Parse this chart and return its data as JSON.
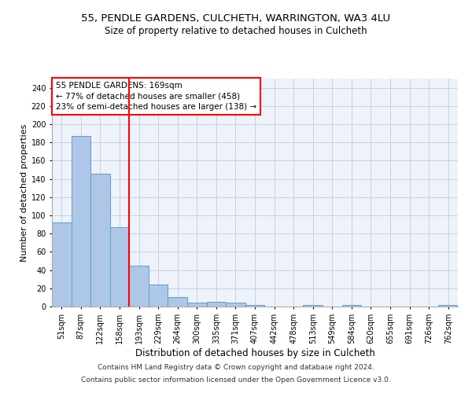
{
  "title1": "55, PENDLE GARDENS, CULCHETH, WARRINGTON, WA3 4LU",
  "title2": "Size of property relative to detached houses in Culcheth",
  "xlabel": "Distribution of detached houses by size in Culcheth",
  "ylabel": "Number of detached properties",
  "footer1": "Contains HM Land Registry data © Crown copyright and database right 2024.",
  "footer2": "Contains public sector information licensed under the Open Government Licence v3.0.",
  "annotation_line1": "55 PENDLE GARDENS: 169sqm",
  "annotation_line2": "← 77% of detached houses are smaller (458)",
  "annotation_line3": "23% of semi-detached houses are larger (138) →",
  "bar_labels": [
    "51sqm",
    "87sqm",
    "122sqm",
    "158sqm",
    "193sqm",
    "229sqm",
    "264sqm",
    "300sqm",
    "335sqm",
    "371sqm",
    "407sqm",
    "442sqm",
    "478sqm",
    "513sqm",
    "549sqm",
    "584sqm",
    "620sqm",
    "655sqm",
    "691sqm",
    "726sqm",
    "762sqm"
  ],
  "bar_values": [
    92,
    187,
    146,
    87,
    45,
    24,
    10,
    4,
    5,
    4,
    2,
    0,
    0,
    2,
    0,
    2,
    0,
    0,
    0,
    0,
    2
  ],
  "bar_color": "#aec6e8",
  "bar_edge_color": "#5a9fd4",
  "red_line_x": 3.5,
  "ylim": [
    0,
    250
  ],
  "yticks": [
    0,
    20,
    40,
    60,
    80,
    100,
    120,
    140,
    160,
    180,
    200,
    220,
    240
  ],
  "bg_color": "#eef2fa",
  "grid_color": "#c8d0e0",
  "title_fontsize": 9.5,
  "subtitle_fontsize": 8.5,
  "ylabel_fontsize": 8,
  "xlabel_fontsize": 8.5,
  "tick_fontsize": 7,
  "annotation_fontsize": 7.5,
  "footer_fontsize": 6.5
}
